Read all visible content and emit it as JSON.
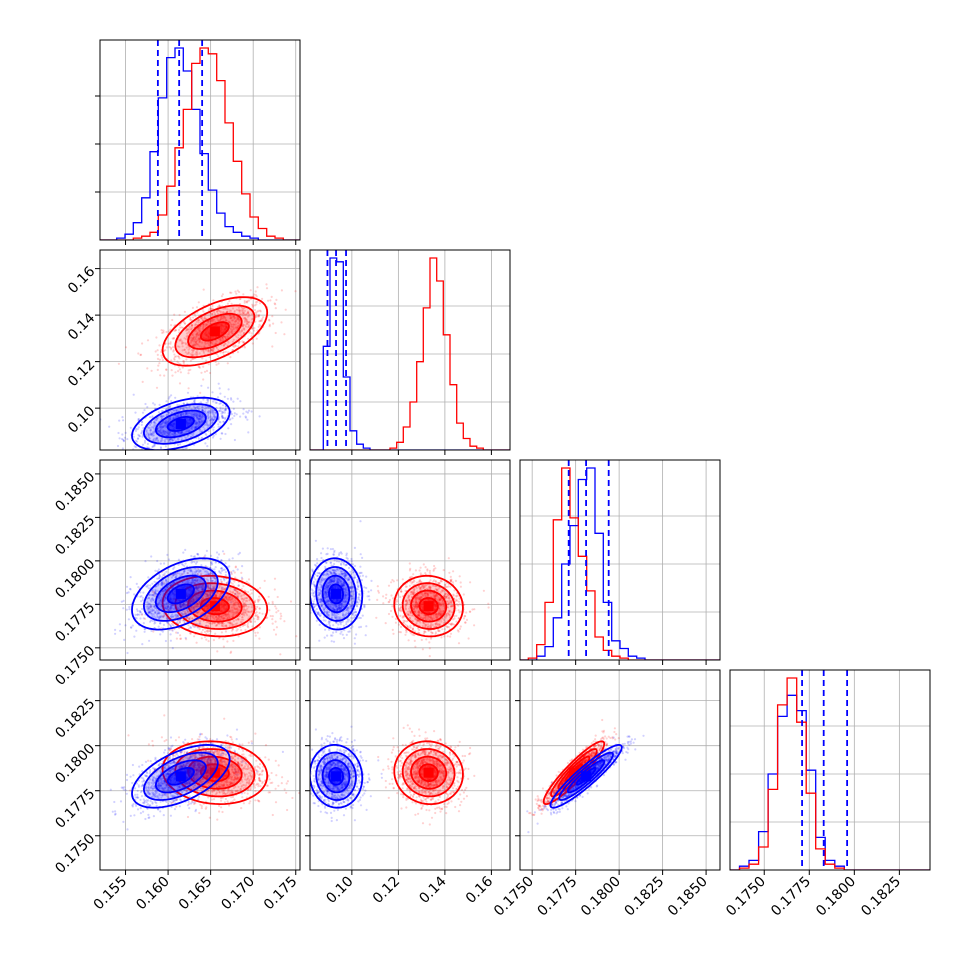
{
  "figure": {
    "type": "corner-plot"
  },
  "colors": {
    "red": "#ff0000",
    "blue": "#0000ff",
    "grid": "#b0b0b0",
    "frame": "#000000"
  },
  "chart_data": {
    "type": "corner",
    "parameters": [
      {
        "range": [
          0.152,
          0.1755
        ],
        "ticks": [
          "0.155",
          "0.160",
          "0.165",
          "0.170",
          "0.175"
        ],
        "tick_values": [
          0.155,
          0.16,
          0.165,
          0.17,
          0.175
        ]
      },
      {
        "range": [
          0.082,
          0.168
        ],
        "ticks": [
          "0.10",
          "0.12",
          "0.14",
          "0.16"
        ],
        "tick_values": [
          0.1,
          0.12,
          0.14,
          0.16
        ]
      },
      {
        "range": [
          0.1743,
          0.1858
        ],
        "ticks": [
          "0.1750",
          "0.1775",
          "0.1800",
          "0.1825",
          "0.1850"
        ],
        "tick_values": [
          0.175,
          0.1775,
          0.18,
          0.1825,
          0.185
        ]
      },
      {
        "range": [
          0.1731,
          0.1842
        ],
        "ticks": [
          "0.1750",
          "0.1775",
          "0.1800",
          "0.1825"
        ],
        "tick_values": [
          0.175,
          0.1775,
          0.18,
          0.1825
        ]
      }
    ],
    "series": [
      {
        "color": "red",
        "means": [
          0.1655,
          0.133,
          0.1774,
          0.1785
        ],
        "sigmas": [
          0.003,
          0.0072,
          0.00085,
          0.00085
        ],
        "correlations": {
          "0-1": 0.55,
          "0-2": -0.1,
          "0-3": -0.1,
          "1-2": -0.05,
          "1-3": -0.05,
          "2-3": 0.92
        },
        "quantile_lines": null
      },
      {
        "color": "blue",
        "means": [
          0.1615,
          0.0932,
          0.1781,
          0.1783
        ],
        "sigmas": [
          0.0028,
          0.0055,
          0.001,
          0.00085
        ],
        "correlations": {
          "0-1": 0.45,
          "0-2": 0.45,
          "0-3": 0.55,
          "1-2": -0.05,
          "1-3": -0.05,
          "2-3": 0.92
        },
        "quantile_lines": [
          [
            0.1588,
            0.1613,
            0.164
          ],
          [
            0.0895,
            0.0932,
            0.0975
          ],
          [
            0.1771,
            0.1781,
            0.1794
          ],
          [
            0.1771,
            0.1783,
            0.1796
          ]
        ]
      }
    ],
    "histograms": [
      {
        "bins": [
          0.152,
          0.1755
        ],
        "red": [
          0,
          0,
          0,
          0,
          1,
          2,
          4,
          13,
          28,
          48,
          68,
          92,
          100,
          97,
          83,
          61,
          41,
          24,
          12,
          6,
          2,
          1,
          0,
          0
        ],
        "blue": [
          0,
          0,
          1,
          3,
          9,
          22,
          46,
          74,
          95,
          100,
          88,
          68,
          45,
          26,
          14,
          7,
          4,
          2,
          1,
          0,
          0,
          0,
          0,
          0
        ]
      },
      {
        "bins": [
          0.082,
          0.168
        ],
        "red": [
          0,
          0,
          0,
          0,
          0,
          0,
          0,
          0,
          0,
          0,
          0,
          0,
          1,
          4,
          12,
          25,
          46,
          74,
          100,
          88,
          60,
          34,
          14,
          6,
          2,
          1,
          0,
          0,
          0,
          0
        ],
        "blue": [
          0,
          0,
          54,
          100,
          98,
          38,
          10,
          3,
          1,
          0,
          0,
          0,
          0,
          0,
          0,
          0,
          0,
          0,
          0,
          0,
          0,
          0,
          0,
          0,
          0,
          0,
          0,
          0,
          0,
          0
        ]
      },
      {
        "bins": [
          0.1743,
          0.1858
        ],
        "red": [
          0,
          1,
          8,
          30,
          73,
          100,
          74,
          54,
          36,
          12,
          5,
          2,
          1,
          0,
          0,
          0,
          0,
          0,
          0,
          0,
          0,
          0,
          0,
          0
        ],
        "blue": [
          0,
          0,
          2,
          7,
          22,
          50,
          70,
          94,
          100,
          66,
          30,
          10,
          6,
          2,
          1,
          0,
          0,
          0,
          0,
          0,
          0,
          0,
          0,
          0
        ]
      },
      {
        "bins": [
          0.1731,
          0.1842
        ],
        "red": [
          0,
          1,
          3,
          12,
          42,
          86,
          100,
          77,
          40,
          11,
          3,
          1,
          0,
          0,
          0,
          0,
          0,
          0,
          0,
          0,
          0
        ],
        "blue": [
          0,
          2,
          5,
          20,
          50,
          80,
          91,
          83,
          52,
          17,
          5,
          2,
          0,
          0,
          0,
          0,
          0,
          0,
          0,
          0,
          0
        ]
      }
    ],
    "grid": true,
    "title": "",
    "xlabel": "",
    "ylabel": ""
  }
}
